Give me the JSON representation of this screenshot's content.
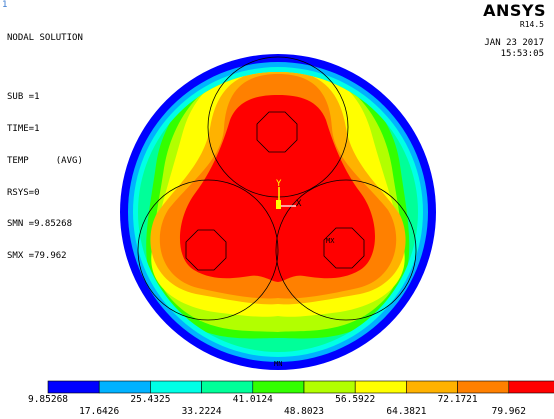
{
  "window_number": "1",
  "solution": {
    "title": "NODAL SOLUTION",
    "sub": "SUB =1",
    "time": "TIME=1",
    "temp": "TEMP     (AVG)",
    "rsys": "RSYS=0",
    "smn": "SMN =9.85268",
    "smx": "SMX =79.962"
  },
  "header": {
    "brand": "ANSYS",
    "version": "R14.5",
    "date": "JAN 23 2017",
    "time": "15:53:05"
  },
  "triad": {
    "y_label": "Y",
    "x_label": "X"
  },
  "markers": {
    "mx": "MX",
    "mn": "MN"
  },
  "legend": {
    "colors": [
      "#0000ff",
      "#00b2ff",
      "#00ffe6",
      "#00ff99",
      "#33ff00",
      "#b2ff00",
      "#ffff00",
      "#ffb200",
      "#ff8000",
      "#ff0000"
    ],
    "top_labels": [
      "9.85268",
      "25.4325",
      "41.0124",
      "56.5922",
      "72.1721"
    ],
    "bottom_labels": [
      "17.6426",
      "33.2224",
      "48.8023",
      "64.3821",
      "79.962"
    ]
  }
}
